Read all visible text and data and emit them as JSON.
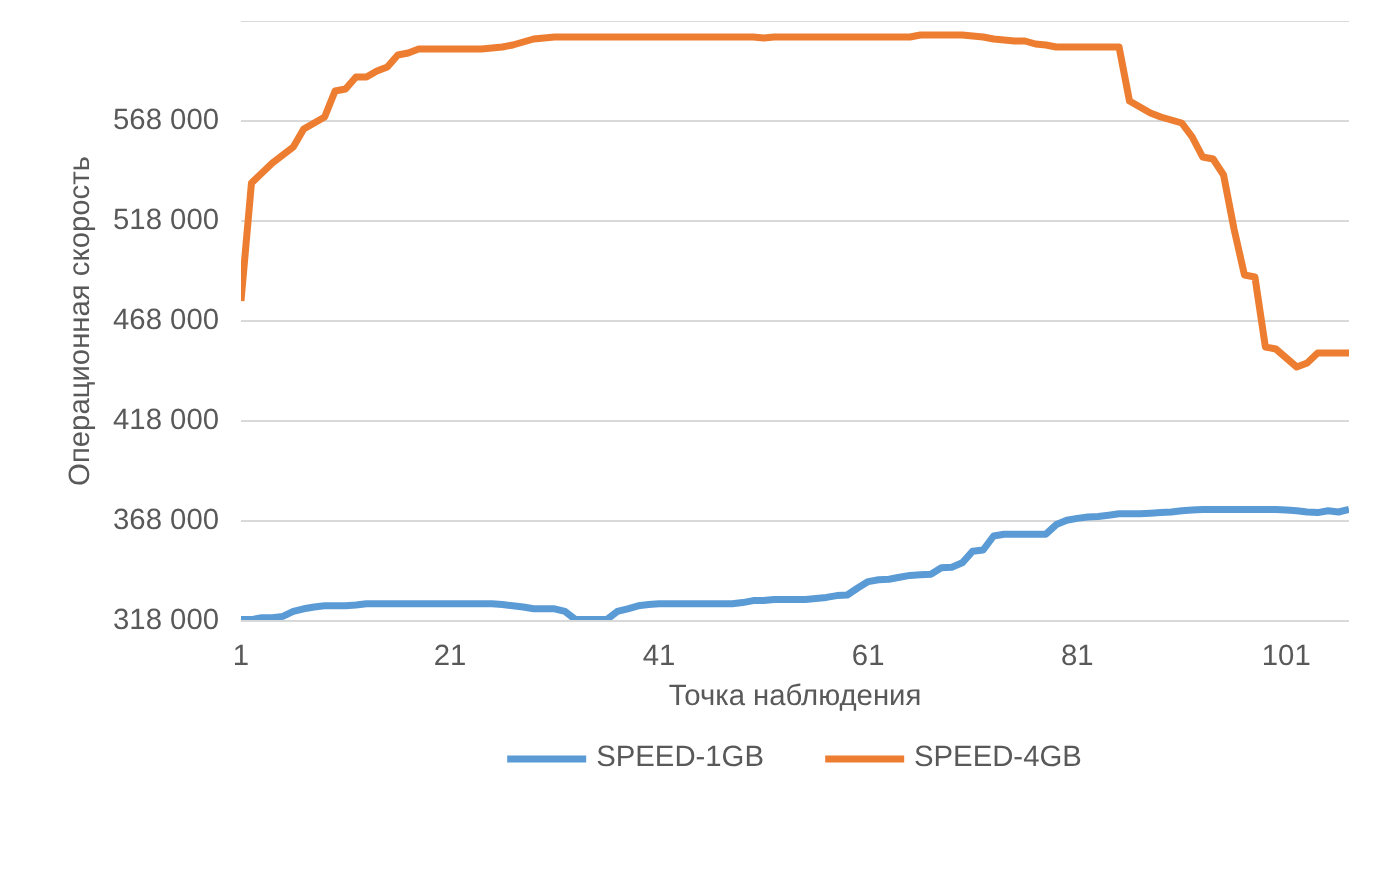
{
  "chart_data": {
    "type": "line",
    "xlabel": "Точка наблюдения",
    "ylabel": "Операционная скорость",
    "x": [
      1,
      2,
      3,
      4,
      5,
      6,
      7,
      8,
      9,
      10,
      11,
      12,
      13,
      14,
      15,
      16,
      17,
      18,
      19,
      20,
      21,
      22,
      23,
      24,
      25,
      26,
      27,
      28,
      29,
      30,
      31,
      32,
      33,
      34,
      35,
      36,
      37,
      38,
      39,
      40,
      41,
      42,
      43,
      44,
      45,
      46,
      47,
      48,
      49,
      50,
      51,
      52,
      53,
      54,
      55,
      56,
      57,
      58,
      59,
      60,
      61,
      62,
      63,
      64,
      65,
      66,
      67,
      68,
      69,
      70,
      71,
      72,
      73,
      74,
      75,
      76,
      77,
      78,
      79,
      80,
      81,
      82,
      83,
      84,
      85,
      86,
      87,
      88,
      89,
      90,
      91,
      92,
      93,
      94,
      95,
      96,
      97,
      98,
      99,
      100,
      101,
      102,
      103,
      104,
      105,
      106,
      107
    ],
    "series": [
      {
        "name": "SPEED-1GB",
        "color": "#5b9bd5",
        "values": [
          318700,
          318700,
          319600,
          319600,
          320300,
          322800,
          324100,
          325000,
          325600,
          325600,
          325600,
          326000,
          326600,
          326600,
          326600,
          326600,
          326600,
          326600,
          326600,
          326600,
          326600,
          326600,
          326600,
          326600,
          326600,
          326200,
          325600,
          325000,
          324100,
          324100,
          324100,
          322800,
          318700,
          318700,
          318700,
          318700,
          322800,
          324100,
          325600,
          326200,
          326600,
          326600,
          326600,
          326600,
          326600,
          326600,
          326600,
          326600,
          327200,
          328200,
          328200,
          328800,
          328800,
          328800,
          328800,
          329300,
          329800,
          330700,
          331000,
          334500,
          337700,
          338600,
          338900,
          339900,
          340800,
          341100,
          341400,
          344600,
          344900,
          347100,
          352900,
          353500,
          360500,
          361400,
          361400,
          361400,
          361400,
          361400,
          366200,
          368400,
          369300,
          370000,
          370300,
          370900,
          371600,
          371600,
          371600,
          371900,
          372200,
          372500,
          373100,
          373500,
          373800,
          373800,
          373800,
          373800,
          373800,
          373800,
          373800,
          373800,
          373500,
          373100,
          372500,
          372200,
          373100,
          372500,
          373800
        ]
      },
      {
        "name": "SPEED-4GB",
        "color": "#ed7d31",
        "values": [
          478000,
          537000,
          542000,
          547000,
          551000,
          555000,
          564000,
          567000,
          570000,
          583000,
          584000,
          590000,
          590000,
          593000,
          595000,
          601000,
          602000,
          604000,
          604000,
          604000,
          604000,
          604000,
          604000,
          604000,
          604500,
          605000,
          606000,
          607500,
          609000,
          609500,
          610000,
          610000,
          610000,
          610000,
          610000,
          610000,
          610000,
          610000,
          610000,
          610000,
          610000,
          610000,
          610000,
          610000,
          610000,
          610000,
          610000,
          610000,
          610000,
          610000,
          609500,
          610000,
          610000,
          610000,
          610000,
          610000,
          610000,
          610000,
          610000,
          610000,
          610000,
          610000,
          610000,
          610000,
          610000,
          611000,
          611000,
          611000,
          611000,
          611000,
          610500,
          610000,
          609000,
          608500,
          608000,
          608000,
          606500,
          606000,
          605000,
          605000,
          605000,
          605000,
          605000,
          605000,
          605000,
          578000,
          575000,
          572000,
          570000,
          568500,
          567000,
          560000,
          550000,
          549000,
          541000,
          514000,
          491000,
          490000,
          455000,
          454000,
          449500,
          445000,
          447000,
          452000,
          452000,
          452000,
          452000
        ]
      }
    ],
    "xlim": [
      1,
      107
    ],
    "xticks": [
      1,
      21,
      41,
      61,
      81,
      101
    ],
    "ylim": [
      318000,
      618000
    ],
    "yticks": [
      {
        "value": 318000,
        "label": "318 000"
      },
      {
        "value": 368000,
        "label": "368 000"
      },
      {
        "value": 418000,
        "label": "418 000"
      },
      {
        "value": 468000,
        "label": "468 000"
      },
      {
        "value": 518000,
        "label": "518 000"
      },
      {
        "value": 568000,
        "label": "568 000"
      },
      {
        "value": 618000,
        "label": null
      }
    ],
    "grid": "y",
    "legend": "bottom",
    "line_style": "solid"
  }
}
